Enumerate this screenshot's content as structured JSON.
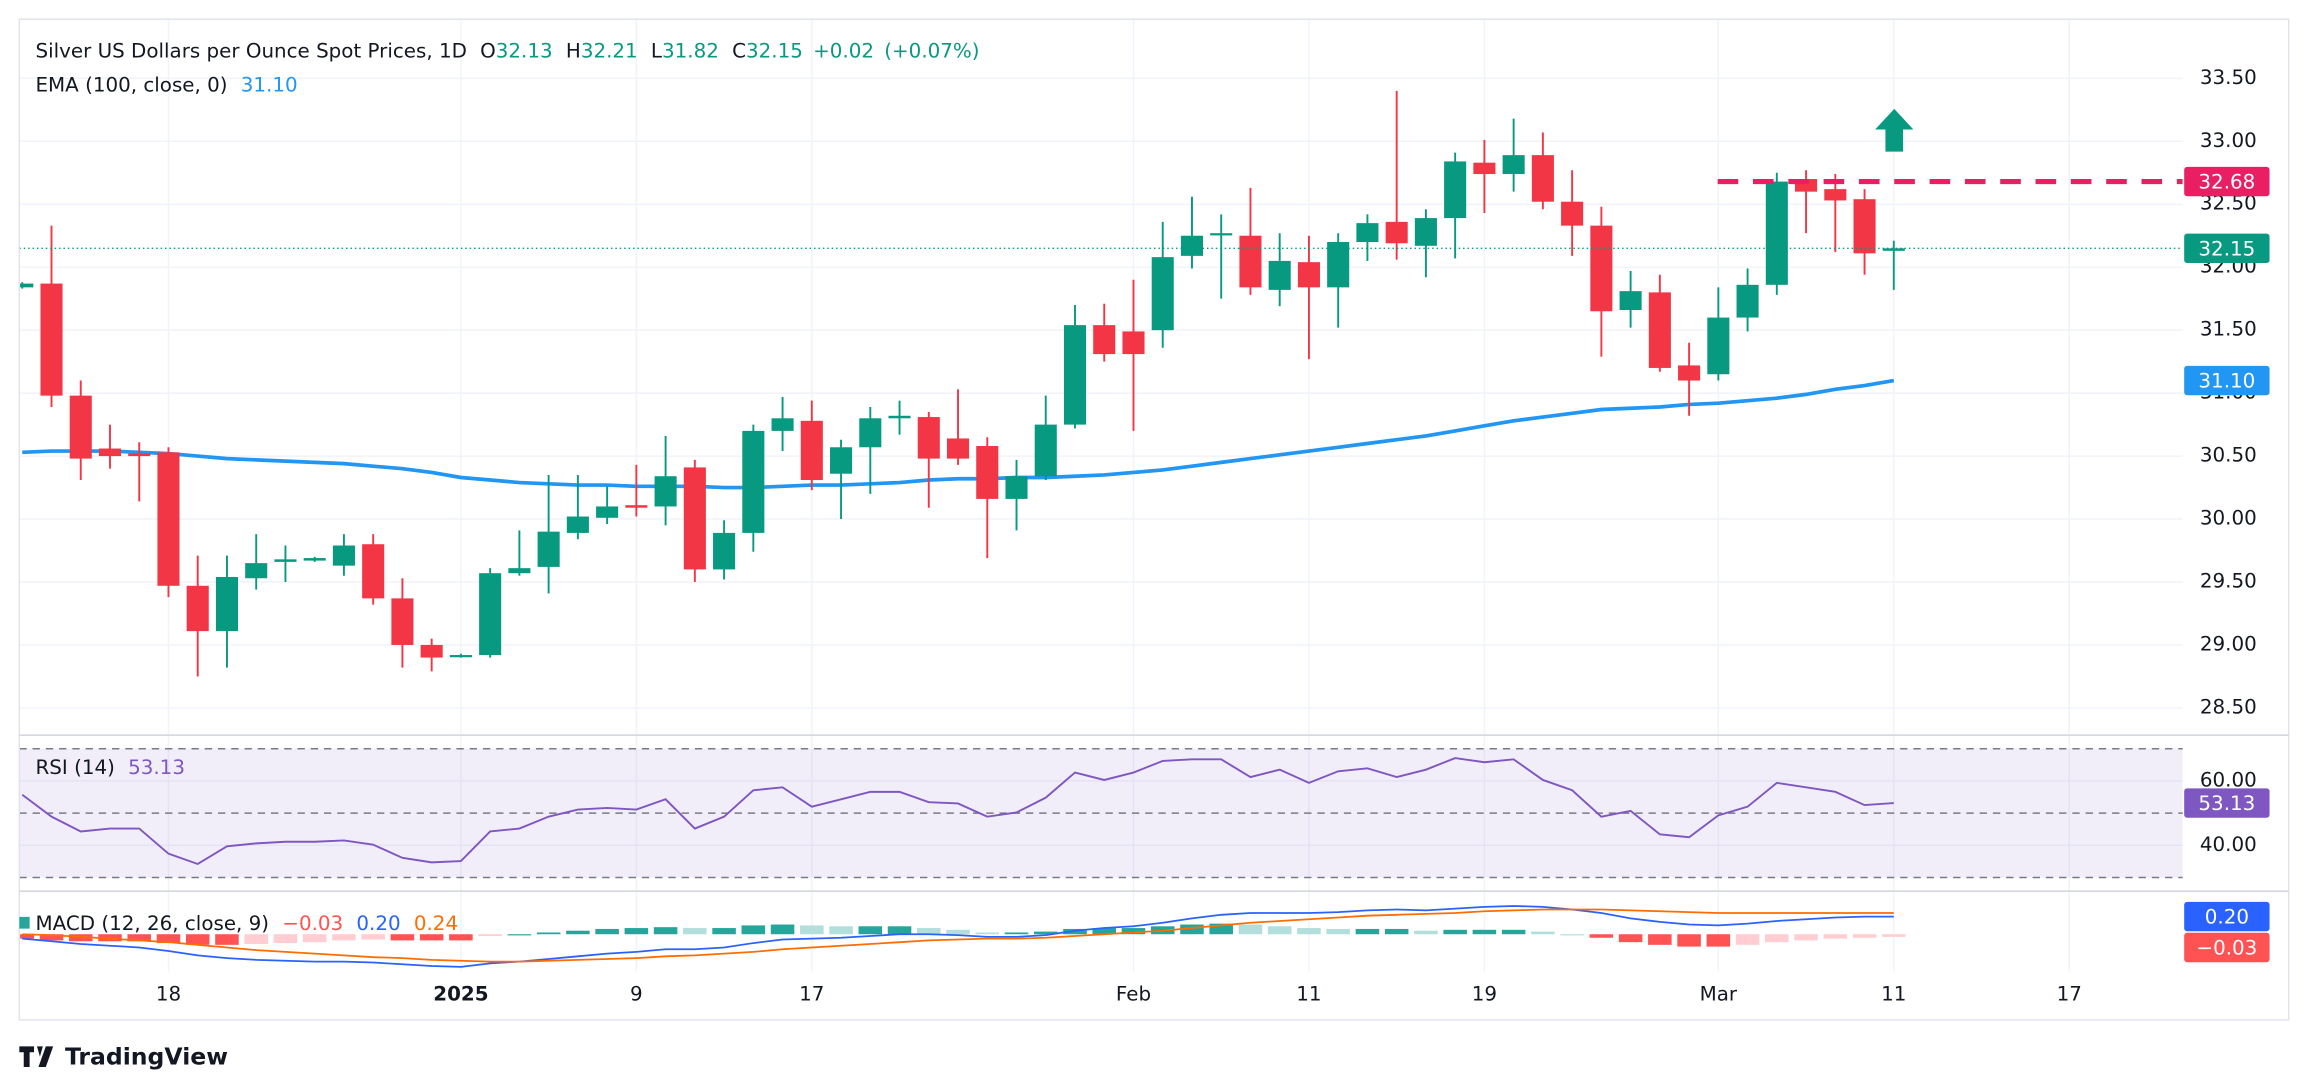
{
  "chart_data": [
    {
      "type": "candlestick",
      "title": "Silver US Dollars per Ounce Spot Prices, 1D",
      "ohlc_legend": [
        {
          "key": "O",
          "value": 32.13
        },
        {
          "key": "H",
          "value": 32.21
        },
        {
          "key": "L",
          "value": 31.82
        },
        {
          "key": "C",
          "value": 32.15
        }
      ],
      "change": {
        "value": 0.02,
        "label": "+0.02"
      },
      "change_pct": {
        "value": 0.07,
        "label": "(+0.07%)"
      },
      "colors": {
        "up": "#089981",
        "down": "#f23645"
      },
      "open": [
        31.84,
        31.87,
        30.98,
        30.56,
        30.52,
        30.53,
        29.47,
        29.11,
        29.53,
        29.66,
        29.67,
        29.63,
        29.8,
        29.37,
        29.0,
        28.91,
        28.92,
        29.57,
        29.62,
        29.89,
        30.01,
        30.11,
        30.1,
        30.41,
        29.6,
        29.89,
        30.7,
        30.78,
        30.36,
        30.57,
        30.8,
        30.81,
        30.64,
        30.58,
        30.16,
        30.34,
        30.75,
        31.54,
        31.49,
        31.5,
        32.09,
        32.26,
        32.25,
        31.82,
        32.04,
        31.84,
        32.2,
        32.36,
        32.17,
        32.39,
        32.83,
        32.74,
        32.89,
        32.52,
        32.33,
        31.66,
        31.8,
        31.22,
        31.15,
        31.6,
        31.86,
        32.7,
        32.62,
        32.54,
        32.13
      ],
      "high": [
        31.88,
        32.33,
        31.1,
        30.75,
        30.61,
        30.57,
        29.71,
        29.71,
        29.88,
        29.79,
        29.7,
        29.88,
        29.88,
        29.53,
        29.05,
        28.93,
        29.61,
        29.91,
        30.35,
        30.35,
        30.26,
        30.43,
        30.66,
        30.47,
        29.99,
        30.75,
        30.97,
        30.94,
        30.63,
        30.89,
        30.94,
        30.85,
        31.03,
        30.65,
        30.47,
        30.98,
        31.7,
        31.71,
        31.9,
        32.36,
        32.56,
        32.42,
        32.63,
        32.27,
        32.25,
        32.27,
        32.42,
        33.4,
        32.46,
        32.91,
        33.01,
        33.18,
        33.07,
        32.77,
        32.48,
        31.97,
        31.94,
        31.4,
        31.84,
        31.99,
        32.75,
        32.77,
        32.74,
        32.62,
        32.21
      ],
      "low": [
        31.83,
        30.89,
        30.31,
        30.4,
        30.14,
        29.38,
        28.75,
        28.82,
        29.44,
        29.5,
        29.66,
        29.55,
        29.32,
        28.82,
        28.79,
        28.9,
        28.9,
        29.55,
        29.41,
        29.84,
        29.96,
        30.02,
        29.95,
        29.5,
        29.52,
        29.74,
        30.54,
        30.23,
        30.0,
        30.2,
        30.67,
        30.09,
        30.43,
        29.69,
        29.91,
        30.31,
        30.72,
        31.25,
        30.7,
        31.36,
        31.99,
        31.75,
        31.78,
        31.69,
        31.27,
        31.52,
        32.05,
        32.06,
        31.92,
        32.07,
        32.43,
        32.6,
        32.46,
        32.09,
        31.29,
        31.52,
        31.17,
        30.82,
        31.1,
        31.49,
        31.78,
        32.27,
        32.12,
        31.94,
        31.82
      ],
      "close": [
        31.87,
        30.98,
        30.48,
        30.5,
        30.5,
        29.47,
        29.11,
        29.54,
        29.65,
        29.68,
        29.69,
        29.79,
        29.37,
        29.0,
        28.9,
        28.92,
        29.57,
        29.61,
        29.9,
        30.02,
        30.1,
        30.09,
        30.34,
        29.6,
        29.89,
        30.7,
        30.8,
        30.31,
        30.57,
        30.8,
        30.82,
        30.48,
        30.48,
        30.16,
        30.34,
        30.75,
        31.54,
        31.31,
        31.31,
        32.08,
        32.25,
        32.27,
        31.84,
        32.05,
        31.84,
        32.2,
        32.35,
        32.19,
        32.39,
        32.84,
        32.74,
        32.89,
        32.52,
        32.33,
        31.65,
        31.81,
        31.2,
        31.1,
        31.6,
        31.86,
        32.68,
        32.6,
        32.53,
        32.11,
        32.15
      ],
      "ema": {
        "name": "EMA (100, close, 0)",
        "color": "#2196f3",
        "price_label": "31.10",
        "values": [
          30.53,
          30.54,
          30.54,
          30.54,
          30.53,
          30.52,
          30.5,
          30.48,
          30.47,
          30.46,
          30.45,
          30.44,
          30.42,
          30.4,
          30.37,
          30.33,
          30.31,
          30.29,
          30.28,
          30.27,
          30.27,
          30.26,
          30.26,
          30.26,
          30.25,
          30.25,
          30.26,
          30.27,
          30.27,
          30.28,
          30.29,
          30.31,
          30.32,
          30.32,
          30.33,
          30.33,
          30.34,
          30.35,
          30.37,
          30.39,
          30.42,
          30.45,
          30.48,
          30.51,
          30.54,
          30.57,
          30.6,
          30.63,
          30.66,
          30.7,
          30.74,
          30.78,
          30.81,
          30.84,
          30.87,
          30.88,
          30.89,
          30.91,
          30.92,
          30.94,
          30.96,
          30.99,
          31.03,
          31.06,
          31.1
        ]
      },
      "resistance": {
        "value": 32.68,
        "color": "#e91e63"
      },
      "ylim": [
        28.29,
        33.97
      ],
      "yticks": [
        {
          "value": 28.5,
          "label": "28.50"
        },
        {
          "value": 29,
          "label": "29.00"
        },
        {
          "value": 29.5,
          "label": "29.50"
        },
        {
          "value": 30,
          "label": "30.00"
        },
        {
          "value": 30.5,
          "label": "30.50"
        },
        {
          "value": 31,
          "label": "31.00"
        },
        {
          "value": 31.5,
          "label": "31.50"
        },
        {
          "value": 32,
          "label": "32.00"
        },
        {
          "value": 32.5,
          "label": "32.50"
        },
        {
          "value": 33,
          "label": "33.00"
        },
        {
          "value": 33.5,
          "label": "33.50"
        }
      ],
      "xticks": [
        {
          "value": 5,
          "label": "18"
        },
        {
          "value": 15,
          "label": "2025"
        },
        {
          "value": 21,
          "label": "9"
        },
        {
          "value": 27,
          "label": "17"
        },
        {
          "value": 38,
          "label": "Feb"
        },
        {
          "value": 44,
          "label": "11"
        },
        {
          "value": 50,
          "label": "19"
        },
        {
          "value": 58,
          "label": "Mar"
        },
        {
          "value": 64,
          "label": "11"
        },
        {
          "value": 70,
          "label": "17"
        }
      ],
      "grid": true
    },
    {
      "type": "line",
      "name": "RSI (14)",
      "color": "#7e57c2",
      "values": [
        55.7,
        48.9,
        44.3,
        45.2,
        45.2,
        37.4,
        34.2,
        39.7,
        40.6,
        41.1,
        41.1,
        41.5,
        40.2,
        36.1,
        34.7,
        35.1,
        44.3,
        45.2,
        48.9,
        51.1,
        51.6,
        51.1,
        54.3,
        45.2,
        48.9,
        57.1,
        58.0,
        52.0,
        54.3,
        56.6,
        56.6,
        53.4,
        53.0,
        48.9,
        50.2,
        54.8,
        62.6,
        60.3,
        62.6,
        66.2,
        66.7,
        66.7,
        61.2,
        63.5,
        59.4,
        63.0,
        63.9,
        61.2,
        63.5,
        67.1,
        65.8,
        66.7,
        60.3,
        57.1,
        48.9,
        50.7,
        43.4,
        42.5,
        49.3,
        52.0,
        59.4,
        58.0,
        56.6,
        52.5,
        53.13
      ],
      "bands": {
        "upper": 70,
        "middle": 50,
        "lower": 30
      },
      "ylim": [
        26,
        74
      ],
      "yticks": [
        {
          "value": 40,
          "label": "40.00"
        },
        {
          "value": 60,
          "label": "60.00"
        }
      ]
    },
    {
      "type": "macd",
      "name": "MACD (12, 26, close, 9)",
      "histogram": {
        "label": "−0.03",
        "colors": [
          "#26a69a",
          "#b2dfdb",
          "#ff5252",
          "#ffcdd2"
        ],
        "values": [
          -0.05,
          -0.07,
          -0.08,
          -0.08,
          -0.08,
          -0.1,
          -0.12,
          -0.12,
          -0.11,
          -0.1,
          -0.09,
          -0.07,
          -0.06,
          -0.07,
          -0.07,
          -0.07,
          -0.02,
          0.0,
          0.02,
          0.04,
          0.06,
          0.07,
          0.08,
          0.07,
          0.07,
          0.1,
          0.11,
          0.1,
          0.09,
          0.09,
          0.09,
          0.07,
          0.05,
          0.02,
          0.02,
          0.03,
          0.06,
          0.07,
          0.07,
          0.09,
          0.11,
          0.12,
          0.11,
          0.09,
          0.07,
          0.06,
          0.06,
          0.06,
          0.04,
          0.05,
          0.05,
          0.05,
          0.03,
          0.0,
          -0.04,
          -0.09,
          -0.12,
          -0.14,
          -0.14,
          -0.12,
          -0.09,
          -0.07,
          -0.05,
          -0.04,
          -0.03
        ]
      },
      "macd": {
        "label": "0.20",
        "color": "#2962ff",
        "values": [
          -0.05,
          -0.08,
          -0.11,
          -0.13,
          -0.15,
          -0.19,
          -0.24,
          -0.27,
          -0.29,
          -0.3,
          -0.31,
          -0.31,
          -0.32,
          -0.34,
          -0.36,
          -0.37,
          -0.33,
          -0.31,
          -0.28,
          -0.25,
          -0.22,
          -0.2,
          -0.17,
          -0.17,
          -0.15,
          -0.1,
          -0.06,
          -0.05,
          -0.04,
          -0.02,
          0.0,
          0.0,
          -0.01,
          -0.03,
          -0.03,
          -0.01,
          0.04,
          0.07,
          0.09,
          0.13,
          0.18,
          0.22,
          0.24,
          0.24,
          0.24,
          0.25,
          0.27,
          0.28,
          0.27,
          0.29,
          0.31,
          0.32,
          0.31,
          0.28,
          0.24,
          0.18,
          0.14,
          0.11,
          0.1,
          0.12,
          0.15,
          0.17,
          0.19,
          0.2,
          0.2
        ]
      },
      "signal": {
        "label": "0.24",
        "color": "#ff6d00",
        "values": [
          0.0,
          -0.01,
          -0.03,
          -0.05,
          -0.07,
          -0.09,
          -0.12,
          -0.15,
          -0.18,
          -0.2,
          -0.22,
          -0.24,
          -0.26,
          -0.27,
          -0.29,
          -0.3,
          -0.31,
          -0.31,
          -0.3,
          -0.29,
          -0.28,
          -0.27,
          -0.25,
          -0.24,
          -0.22,
          -0.2,
          -0.17,
          -0.15,
          -0.13,
          -0.11,
          -0.09,
          -0.07,
          -0.06,
          -0.05,
          -0.05,
          -0.04,
          -0.02,
          0.0,
          0.02,
          0.04,
          0.07,
          0.1,
          0.13,
          0.15,
          0.17,
          0.19,
          0.21,
          0.22,
          0.23,
          0.24,
          0.26,
          0.27,
          0.28,
          0.28,
          0.28,
          0.27,
          0.26,
          0.25,
          0.24,
          0.24,
          0.24,
          0.24,
          0.24,
          0.24,
          0.24
        ]
      },
      "ylim": [
        -0.42,
        0.48
      ]
    }
  ],
  "footer": {
    "brand": "TradingView"
  }
}
